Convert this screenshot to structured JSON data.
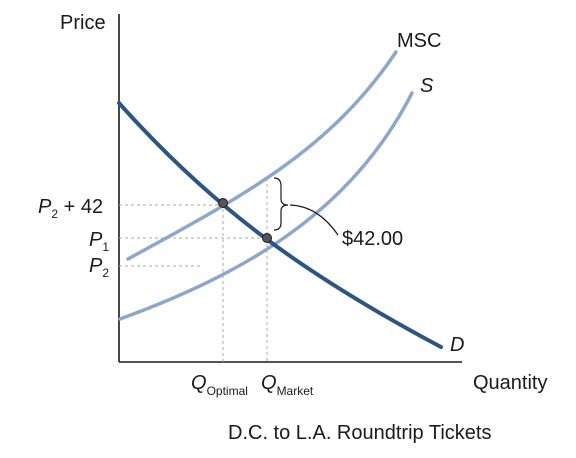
{
  "chart_data": {
    "type": "line",
    "title": "D.C. to L.A. Roundtrip Tickets",
    "ylabel": "Price",
    "xlabel": "Quantity",
    "grid": false,
    "curves": [
      {
        "label": "MSC",
        "color": "#8fa6cc"
      },
      {
        "label": "S",
        "color": "#8fa6cc"
      },
      {
        "label": "D",
        "color": "#2b5586"
      }
    ],
    "price_ticks": [
      {
        "main": "P",
        "sub": "2",
        "suffix": " + 42"
      },
      {
        "main": "P",
        "sub": "1",
        "suffix": ""
      },
      {
        "main": "P",
        "sub": "2",
        "suffix": ""
      }
    ],
    "quantity_ticks": [
      {
        "main": "Q",
        "sub": "Optimal"
      },
      {
        "main": "Q",
        "sub": "Market"
      }
    ],
    "annotation": {
      "text": "$42.00"
    },
    "colors": {
      "light_curve": "#8fa6cc",
      "demand_curve": "#2b5586",
      "guide": "#aaaaaa",
      "point": "#555555"
    }
  }
}
